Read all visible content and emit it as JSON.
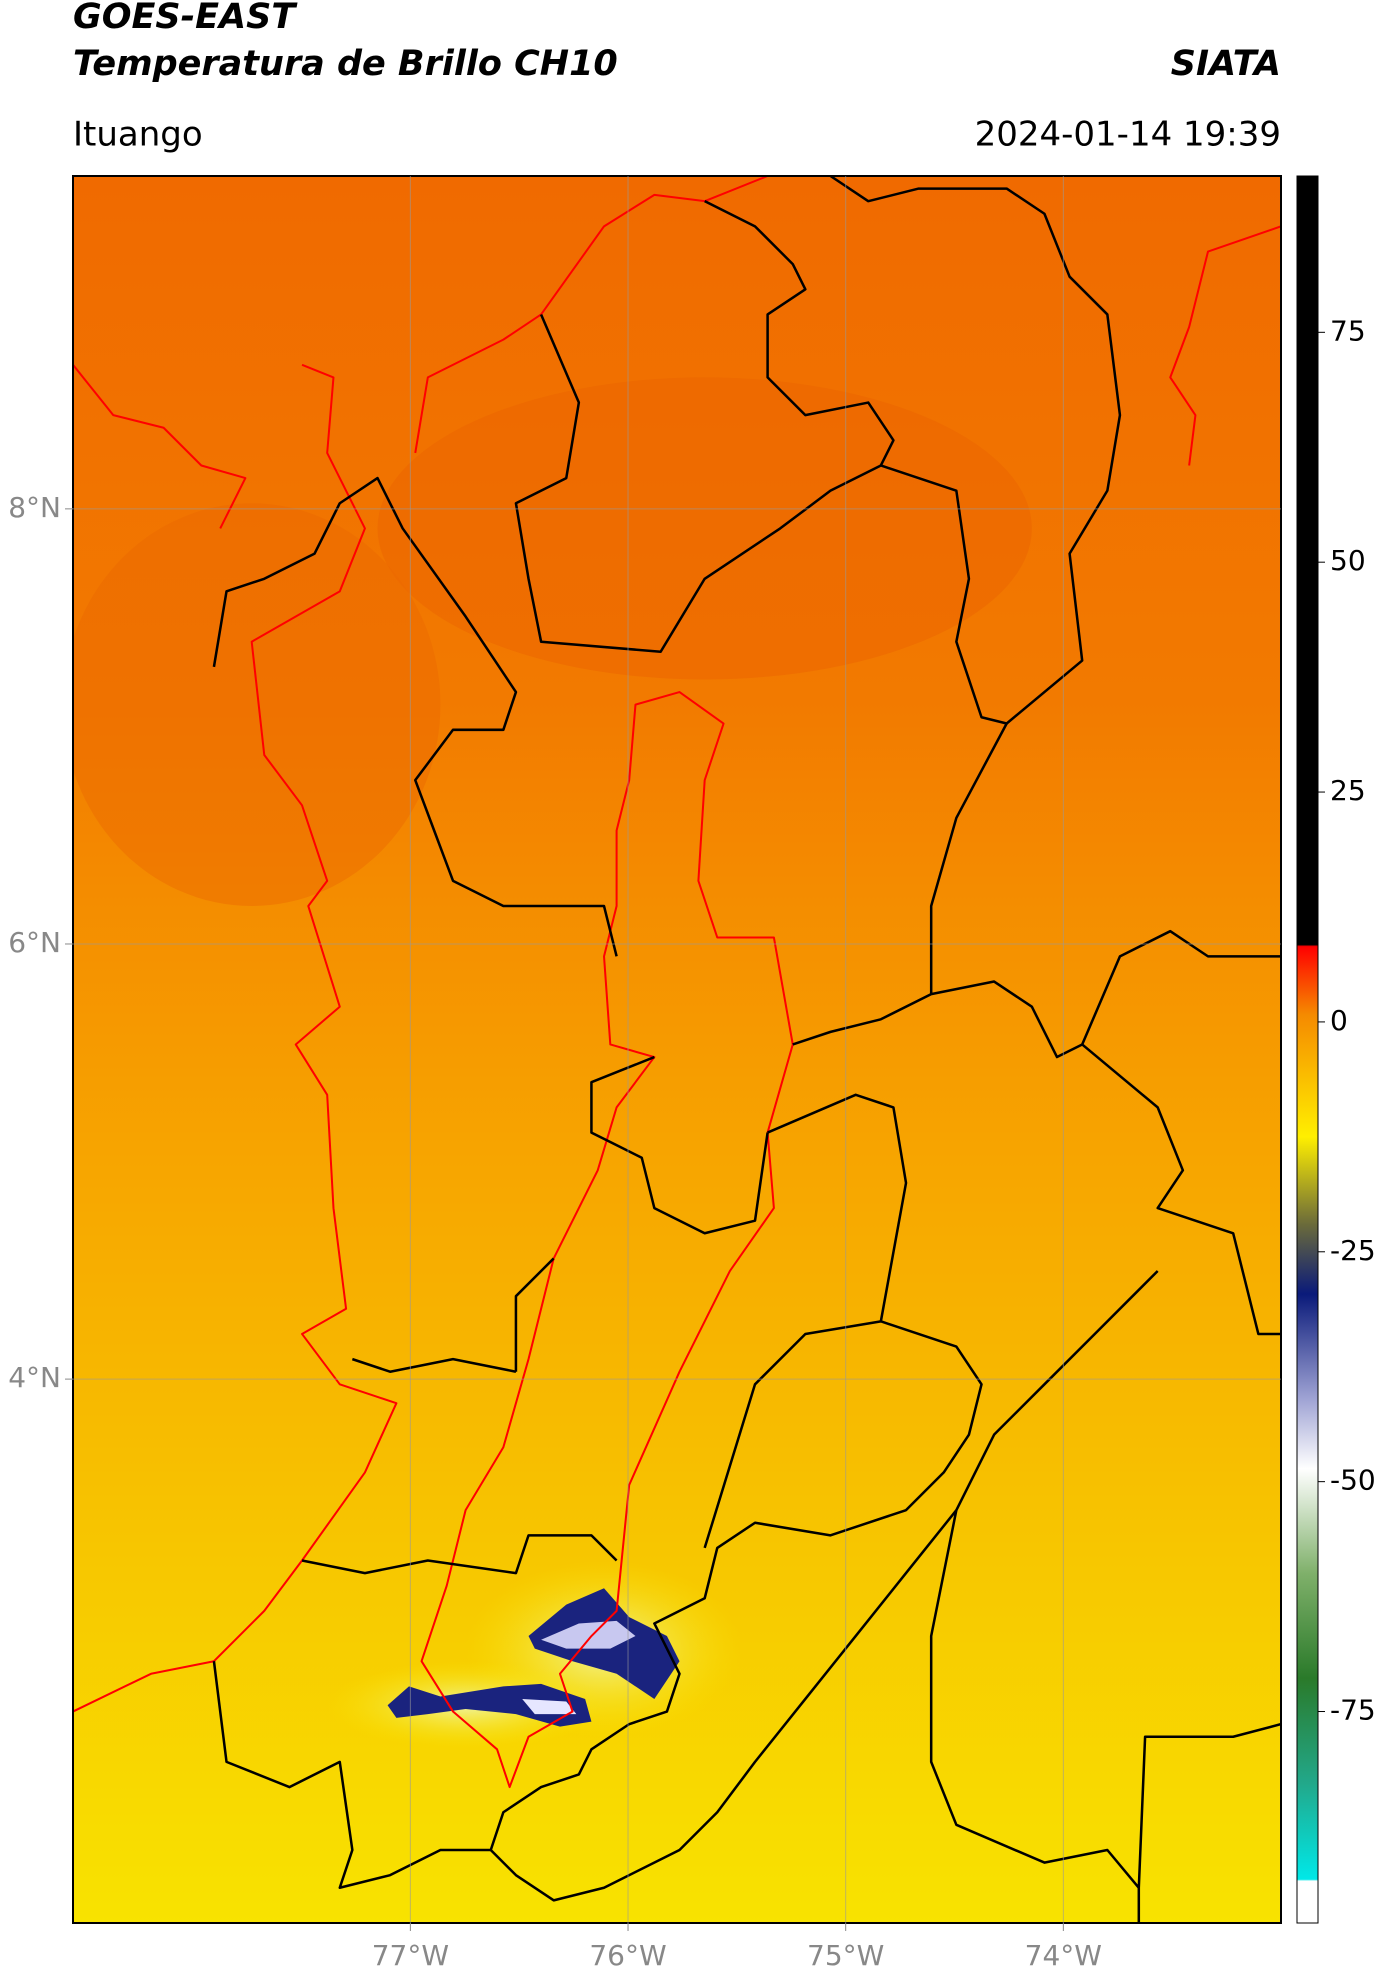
{
  "header": {
    "title": "GOES-EAST",
    "subtitle": "Temperatura de Brillo CH10",
    "brand": "SIATA",
    "location": "Ituango",
    "datetime": "2024-01-14 19:39"
  },
  "map": {
    "xlim": [
      -78.55,
      -73.0
    ],
    "ylim": [
      1.5,
      9.53
    ],
    "xticks": [
      {
        "value": -77,
        "label": "77°W"
      },
      {
        "value": -76,
        "label": "76°W"
      },
      {
        "value": -75,
        "label": "75°W"
      },
      {
        "value": -74,
        "label": "74°W"
      }
    ],
    "yticks": [
      {
        "value": 8,
        "label": "8°N"
      },
      {
        "value": 6,
        "label": "6°N"
      },
      {
        "value": 4,
        "label": "4°N"
      }
    ]
  },
  "colorbar": {
    "range": [
      -98,
      92
    ],
    "ticks": [
      75,
      50,
      25,
      0,
      -25,
      -50,
      -75
    ]
  }
}
